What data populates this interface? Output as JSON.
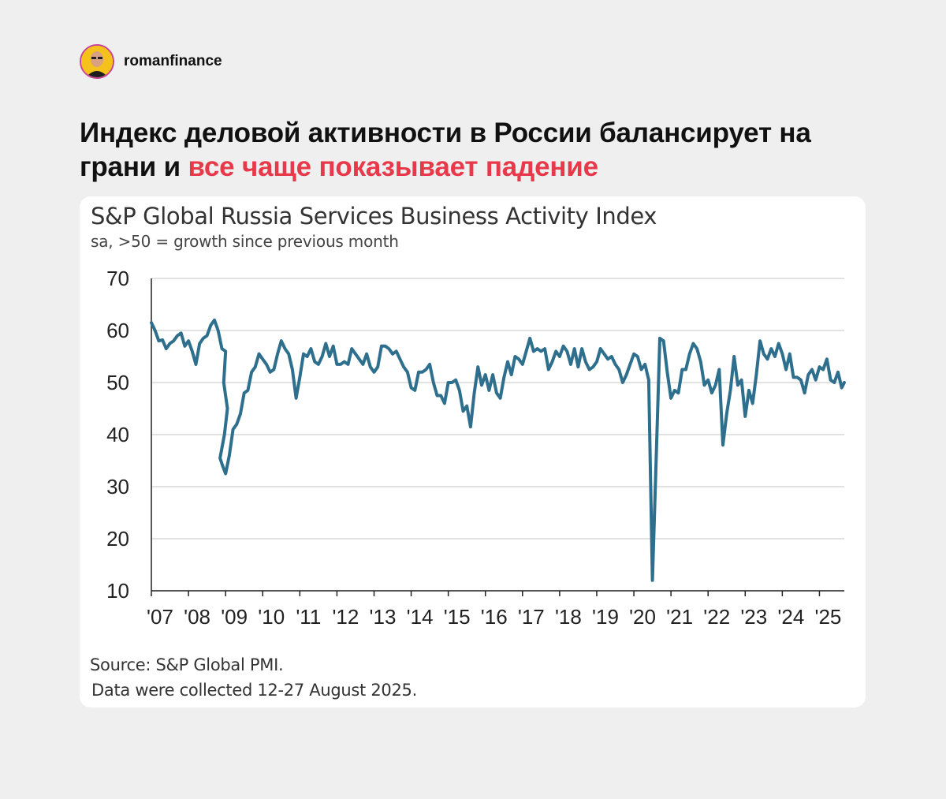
{
  "profile": {
    "username": "romanfinance"
  },
  "headline": {
    "part1": "Индекс деловой активности в России балансирует на грани и ",
    "part2": "все чаще показывает падение"
  },
  "colors": {
    "accent": "#e8394a",
    "series": "#2e6f8e",
    "grid": "#d9d9d9"
  },
  "source": {
    "line1": "Source: S&P Global PMI.",
    "line2": "Data were collected 12-27 August 2025."
  },
  "chart_data": {
    "type": "line",
    "title": "S&P Global Russia Services Business Activity Index",
    "subtitle": "sa, >50 = growth since previous month",
    "xlabel": "",
    "ylabel": "",
    "ylim": [
      10,
      70
    ],
    "yticks": [
      10,
      20,
      30,
      40,
      50,
      60,
      70
    ],
    "xticks": [
      2007,
      2008,
      2009,
      2010,
      2011,
      2012,
      2013,
      2014,
      2015,
      2016,
      2017,
      2018,
      2019,
      2020,
      2021,
      2022,
      2023,
      2024,
      2025
    ],
    "xtick_labels": [
      "'07",
      "'08",
      "'09",
      "'10",
      "'11",
      "'12",
      "'13",
      "'14",
      "'15",
      "'16",
      "'17",
      "'18",
      "'19",
      "'20",
      "'21",
      "'22",
      "'23",
      "'24",
      "'25"
    ],
    "xlim": [
      2007.0,
      2025.67
    ],
    "grid": "horizontal",
    "series": [
      {
        "points": [
          [
            2007.0,
            61.5
          ],
          [
            2007.1,
            60.0
          ],
          [
            2007.2,
            58.0
          ],
          [
            2007.3,
            58.2
          ],
          [
            2007.4,
            56.5
          ],
          [
            2007.5,
            57.5
          ],
          [
            2007.6,
            58.0
          ],
          [
            2007.7,
            59.0
          ],
          [
            2007.8,
            59.5
          ],
          [
            2007.9,
            57.0
          ],
          [
            2008.0,
            58.0
          ],
          [
            2008.1,
            56.0
          ],
          [
            2008.2,
            53.5
          ],
          [
            2008.3,
            57.5
          ],
          [
            2008.4,
            58.5
          ],
          [
            2008.5,
            59.0
          ],
          [
            2008.6,
            61.0
          ],
          [
            2008.7,
            62.0
          ],
          [
            2008.8,
            60.0
          ],
          [
            2008.9,
            56.5
          ],
          [
            2009.0,
            56.0
          ],
          [
            2008.95,
            50.0
          ],
          [
            2009.05,
            45.0
          ],
          [
            2008.97,
            40.0
          ],
          [
            2008.85,
            35.5
          ],
          [
            2008.92,
            34.0
          ],
          [
            2009.0,
            32.5
          ],
          [
            2009.1,
            36.0
          ],
          [
            2009.2,
            41.0
          ],
          [
            2009.3,
            42.0
          ],
          [
            2009.4,
            44.0
          ],
          [
            2009.5,
            48.0
          ],
          [
            2009.6,
            48.5
          ],
          [
            2009.7,
            52.0
          ],
          [
            2009.8,
            53.0
          ],
          [
            2009.9,
            55.5
          ],
          [
            2010.0,
            54.5
          ],
          [
            2010.1,
            53.5
          ],
          [
            2010.2,
            52.0
          ],
          [
            2010.3,
            52.5
          ],
          [
            2010.4,
            55.5
          ],
          [
            2010.5,
            58.0
          ],
          [
            2010.6,
            56.5
          ],
          [
            2010.7,
            55.5
          ],
          [
            2010.8,
            52.5
          ],
          [
            2010.9,
            47.0
          ],
          [
            2011.0,
            51.0
          ],
          [
            2011.1,
            55.5
          ],
          [
            2011.2,
            55.0
          ],
          [
            2011.3,
            56.5
          ],
          [
            2011.4,
            54.0
          ],
          [
            2011.5,
            53.5
          ],
          [
            2011.6,
            55.0
          ],
          [
            2011.7,
            57.5
          ],
          [
            2011.8,
            55.0
          ],
          [
            2011.9,
            57.0
          ],
          [
            2012.0,
            53.5
          ],
          [
            2012.1,
            53.5
          ],
          [
            2012.2,
            54.0
          ],
          [
            2012.3,
            53.5
          ],
          [
            2012.4,
            56.5
          ],
          [
            2012.5,
            55.5
          ],
          [
            2012.6,
            54.5
          ],
          [
            2012.7,
            53.5
          ],
          [
            2012.8,
            55.5
          ],
          [
            2012.9,
            53.0
          ],
          [
            2013.0,
            52.0
          ],
          [
            2013.1,
            53.0
          ],
          [
            2013.2,
            57.0
          ],
          [
            2013.3,
            57.0
          ],
          [
            2013.4,
            56.5
          ],
          [
            2013.5,
            55.5
          ],
          [
            2013.6,
            56.0
          ],
          [
            2013.7,
            54.5
          ],
          [
            2013.8,
            53.0
          ],
          [
            2013.9,
            52.0
          ],
          [
            2014.0,
            49.0
          ],
          [
            2014.1,
            48.5
          ],
          [
            2014.2,
            52.0
          ],
          [
            2014.3,
            52.0
          ],
          [
            2014.4,
            52.5
          ],
          [
            2014.5,
            53.5
          ],
          [
            2014.6,
            50.0
          ],
          [
            2014.7,
            47.5
          ],
          [
            2014.8,
            47.5
          ],
          [
            2014.9,
            46.0
          ],
          [
            2015.0,
            50.0
          ],
          [
            2015.1,
            50.0
          ],
          [
            2015.2,
            50.5
          ],
          [
            2015.3,
            48.5
          ],
          [
            2015.4,
            44.5
          ],
          [
            2015.5,
            45.5
          ],
          [
            2015.6,
            41.5
          ],
          [
            2015.7,
            48.0
          ],
          [
            2015.8,
            53.0
          ],
          [
            2015.9,
            49.5
          ],
          [
            2016.0,
            51.5
          ],
          [
            2016.1,
            48.5
          ],
          [
            2016.2,
            51.5
          ],
          [
            2016.3,
            48.0
          ],
          [
            2016.4,
            47.0
          ],
          [
            2016.5,
            51.0
          ],
          [
            2016.6,
            54.0
          ],
          [
            2016.7,
            51.5
          ],
          [
            2016.8,
            55.0
          ],
          [
            2016.9,
            54.5
          ],
          [
            2017.0,
            53.5
          ],
          [
            2017.1,
            56.0
          ],
          [
            2017.2,
            58.5
          ],
          [
            2017.3,
            56.0
          ],
          [
            2017.4,
            56.5
          ],
          [
            2017.5,
            56.0
          ],
          [
            2017.6,
            56.5
          ],
          [
            2017.7,
            52.5
          ],
          [
            2017.8,
            54.0
          ],
          [
            2017.9,
            56.0
          ],
          [
            2018.0,
            55.0
          ],
          [
            2018.1,
            57.0
          ],
          [
            2018.2,
            56.0
          ],
          [
            2018.3,
            53.5
          ],
          [
            2018.4,
            56.5
          ],
          [
            2018.5,
            53.0
          ],
          [
            2018.6,
            56.5
          ],
          [
            2018.7,
            54.0
          ],
          [
            2018.8,
            52.5
          ],
          [
            2018.9,
            53.0
          ],
          [
            2019.0,
            54.0
          ],
          [
            2019.1,
            56.5
          ],
          [
            2019.2,
            55.5
          ],
          [
            2019.3,
            54.5
          ],
          [
            2019.4,
            55.0
          ],
          [
            2019.5,
            53.5
          ],
          [
            2019.6,
            52.5
          ],
          [
            2019.7,
            50.0
          ],
          [
            2019.8,
            51.5
          ],
          [
            2019.9,
            53.5
          ],
          [
            2020.0,
            55.5
          ],
          [
            2020.1,
            55.0
          ],
          [
            2020.2,
            52.5
          ],
          [
            2020.3,
            53.5
          ],
          [
            2020.4,
            50.5
          ],
          [
            2020.5,
            12.0
          ],
          [
            2020.6,
            35.0
          ],
          [
            2020.7,
            58.5
          ],
          [
            2020.8,
            58.0
          ],
          [
            2020.9,
            52.0
          ],
          [
            2021.0,
            47.0
          ],
          [
            2021.1,
            48.5
          ],
          [
            2021.2,
            48.0
          ],
          [
            2021.3,
            52.5
          ],
          [
            2021.4,
            52.5
          ],
          [
            2021.5,
            55.5
          ],
          [
            2021.6,
            57.5
          ],
          [
            2021.7,
            56.5
          ],
          [
            2021.8,
            54.0
          ],
          [
            2021.9,
            49.5
          ],
          [
            2022.0,
            50.5
          ],
          [
            2022.1,
            48.0
          ],
          [
            2022.2,
            49.5
          ],
          [
            2022.3,
            52.5
          ],
          [
            2022.4,
            38.0
          ],
          [
            2022.5,
            44.0
          ],
          [
            2022.6,
            48.5
          ],
          [
            2022.7,
            55.0
          ],
          [
            2022.8,
            49.5
          ],
          [
            2022.9,
            50.5
          ],
          [
            2023.0,
            43.5
          ],
          [
            2023.1,
            48.5
          ],
          [
            2023.2,
            46.0
          ],
          [
            2023.3,
            51.5
          ],
          [
            2023.4,
            58.0
          ],
          [
            2023.5,
            55.5
          ],
          [
            2023.6,
            54.5
          ],
          [
            2023.7,
            56.5
          ],
          [
            2023.8,
            55.0
          ],
          [
            2023.9,
            57.5
          ],
          [
            2024.0,
            55.5
          ],
          [
            2024.1,
            52.5
          ],
          [
            2024.2,
            55.5
          ],
          [
            2024.3,
            51.0
          ],
          [
            2024.4,
            51.0
          ],
          [
            2024.5,
            50.5
          ],
          [
            2024.6,
            48.0
          ],
          [
            2024.7,
            51.5
          ],
          [
            2024.8,
            52.5
          ],
          [
            2024.9,
            50.5
          ],
          [
            2025.0,
            53.0
          ],
          [
            2025.1,
            52.5
          ],
          [
            2025.2,
            54.5
          ],
          [
            2025.3,
            50.5
          ],
          [
            2025.4,
            50.0
          ],
          [
            2025.5,
            52.0
          ],
          [
            2025.6,
            49.0
          ],
          [
            2025.67,
            50.0
          ]
        ]
      }
    ]
  }
}
